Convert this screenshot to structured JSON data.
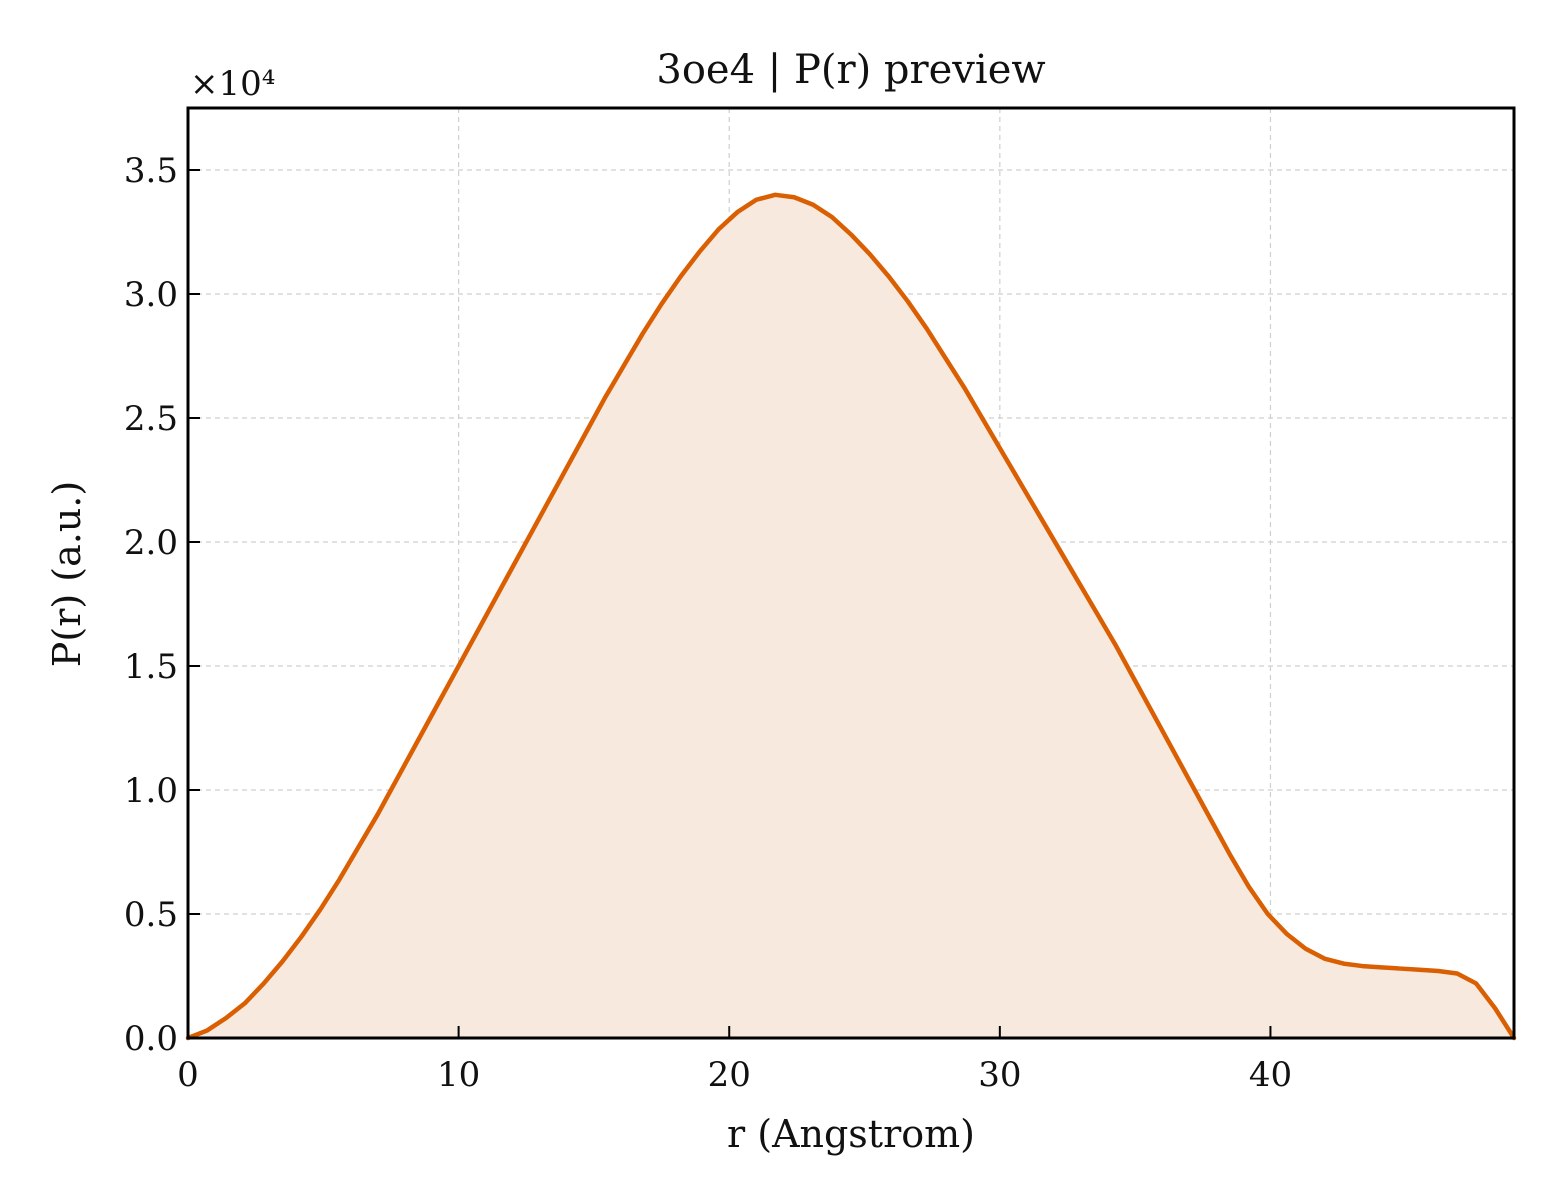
{
  "chart_data": {
    "type": "area",
    "title": "3oe4 | P(r) preview",
    "xlabel": "r (Angstrom)",
    "ylabel": "P(r) (a.u.)",
    "y_multiplier": "×10⁴",
    "xlim": [
      0,
      49
    ],
    "ylim": [
      0,
      3.75
    ],
    "xticks": [
      0,
      10,
      20,
      30,
      40
    ],
    "xtick_labels": [
      "0",
      "10",
      "20",
      "30",
      "40"
    ],
    "yticks": [
      0,
      0.5,
      1.0,
      1.5,
      2.0,
      2.5,
      3.0,
      3.5
    ],
    "ytick_labels": [
      "0.0",
      "0.5",
      "1.0",
      "1.5",
      "2.0",
      "2.5",
      "3.0",
      "3.5"
    ],
    "grid": true,
    "line_color": "#d95f02",
    "fill_color": "#f8e9df",
    "series": [
      {
        "x": [
          0,
          0.7,
          1.4,
          2.1,
          2.8,
          3.5,
          4.2,
          4.9,
          5.6,
          6.3,
          7.0,
          7.7,
          8.4,
          9.1,
          9.8,
          10.5,
          11.2,
          11.9,
          12.6,
          13.3,
          14.0,
          14.7,
          15.4,
          16.1,
          16.8,
          17.5,
          18.2,
          18.9,
          19.6,
          20.3,
          21.0,
          21.7,
          22.4,
          23.1,
          23.8,
          24.5,
          25.2,
          25.9,
          26.6,
          27.3,
          28.0,
          28.7,
          29.4,
          30.1,
          30.8,
          31.5,
          32.2,
          32.9,
          33.6,
          34.3,
          35.0,
          35.7,
          36.4,
          37.1,
          37.8,
          38.5,
          39.2,
          39.9,
          40.6,
          41.3,
          42.0,
          42.7,
          43.4,
          44.1,
          44.8,
          45.5,
          46.2,
          46.9,
          47.6,
          48.3,
          49.0
        ],
        "y": [
          0.0,
          0.03,
          0.08,
          0.14,
          0.22,
          0.31,
          0.41,
          0.52,
          0.64,
          0.77,
          0.9,
          1.04,
          1.18,
          1.32,
          1.46,
          1.6,
          1.74,
          1.88,
          2.02,
          2.16,
          2.3,
          2.44,
          2.58,
          2.71,
          2.84,
          2.96,
          3.07,
          3.17,
          3.26,
          3.33,
          3.38,
          3.4,
          3.39,
          3.36,
          3.31,
          3.24,
          3.16,
          3.07,
          2.97,
          2.86,
          2.74,
          2.62,
          2.49,
          2.36,
          2.23,
          2.1,
          1.97,
          1.84,
          1.71,
          1.58,
          1.44,
          1.3,
          1.16,
          1.02,
          0.88,
          0.74,
          0.61,
          0.5,
          0.42,
          0.36,
          0.32,
          0.3,
          0.29,
          0.285,
          0.28,
          0.275,
          0.27,
          0.26,
          0.22,
          0.12,
          0.0
        ]
      }
    ]
  }
}
